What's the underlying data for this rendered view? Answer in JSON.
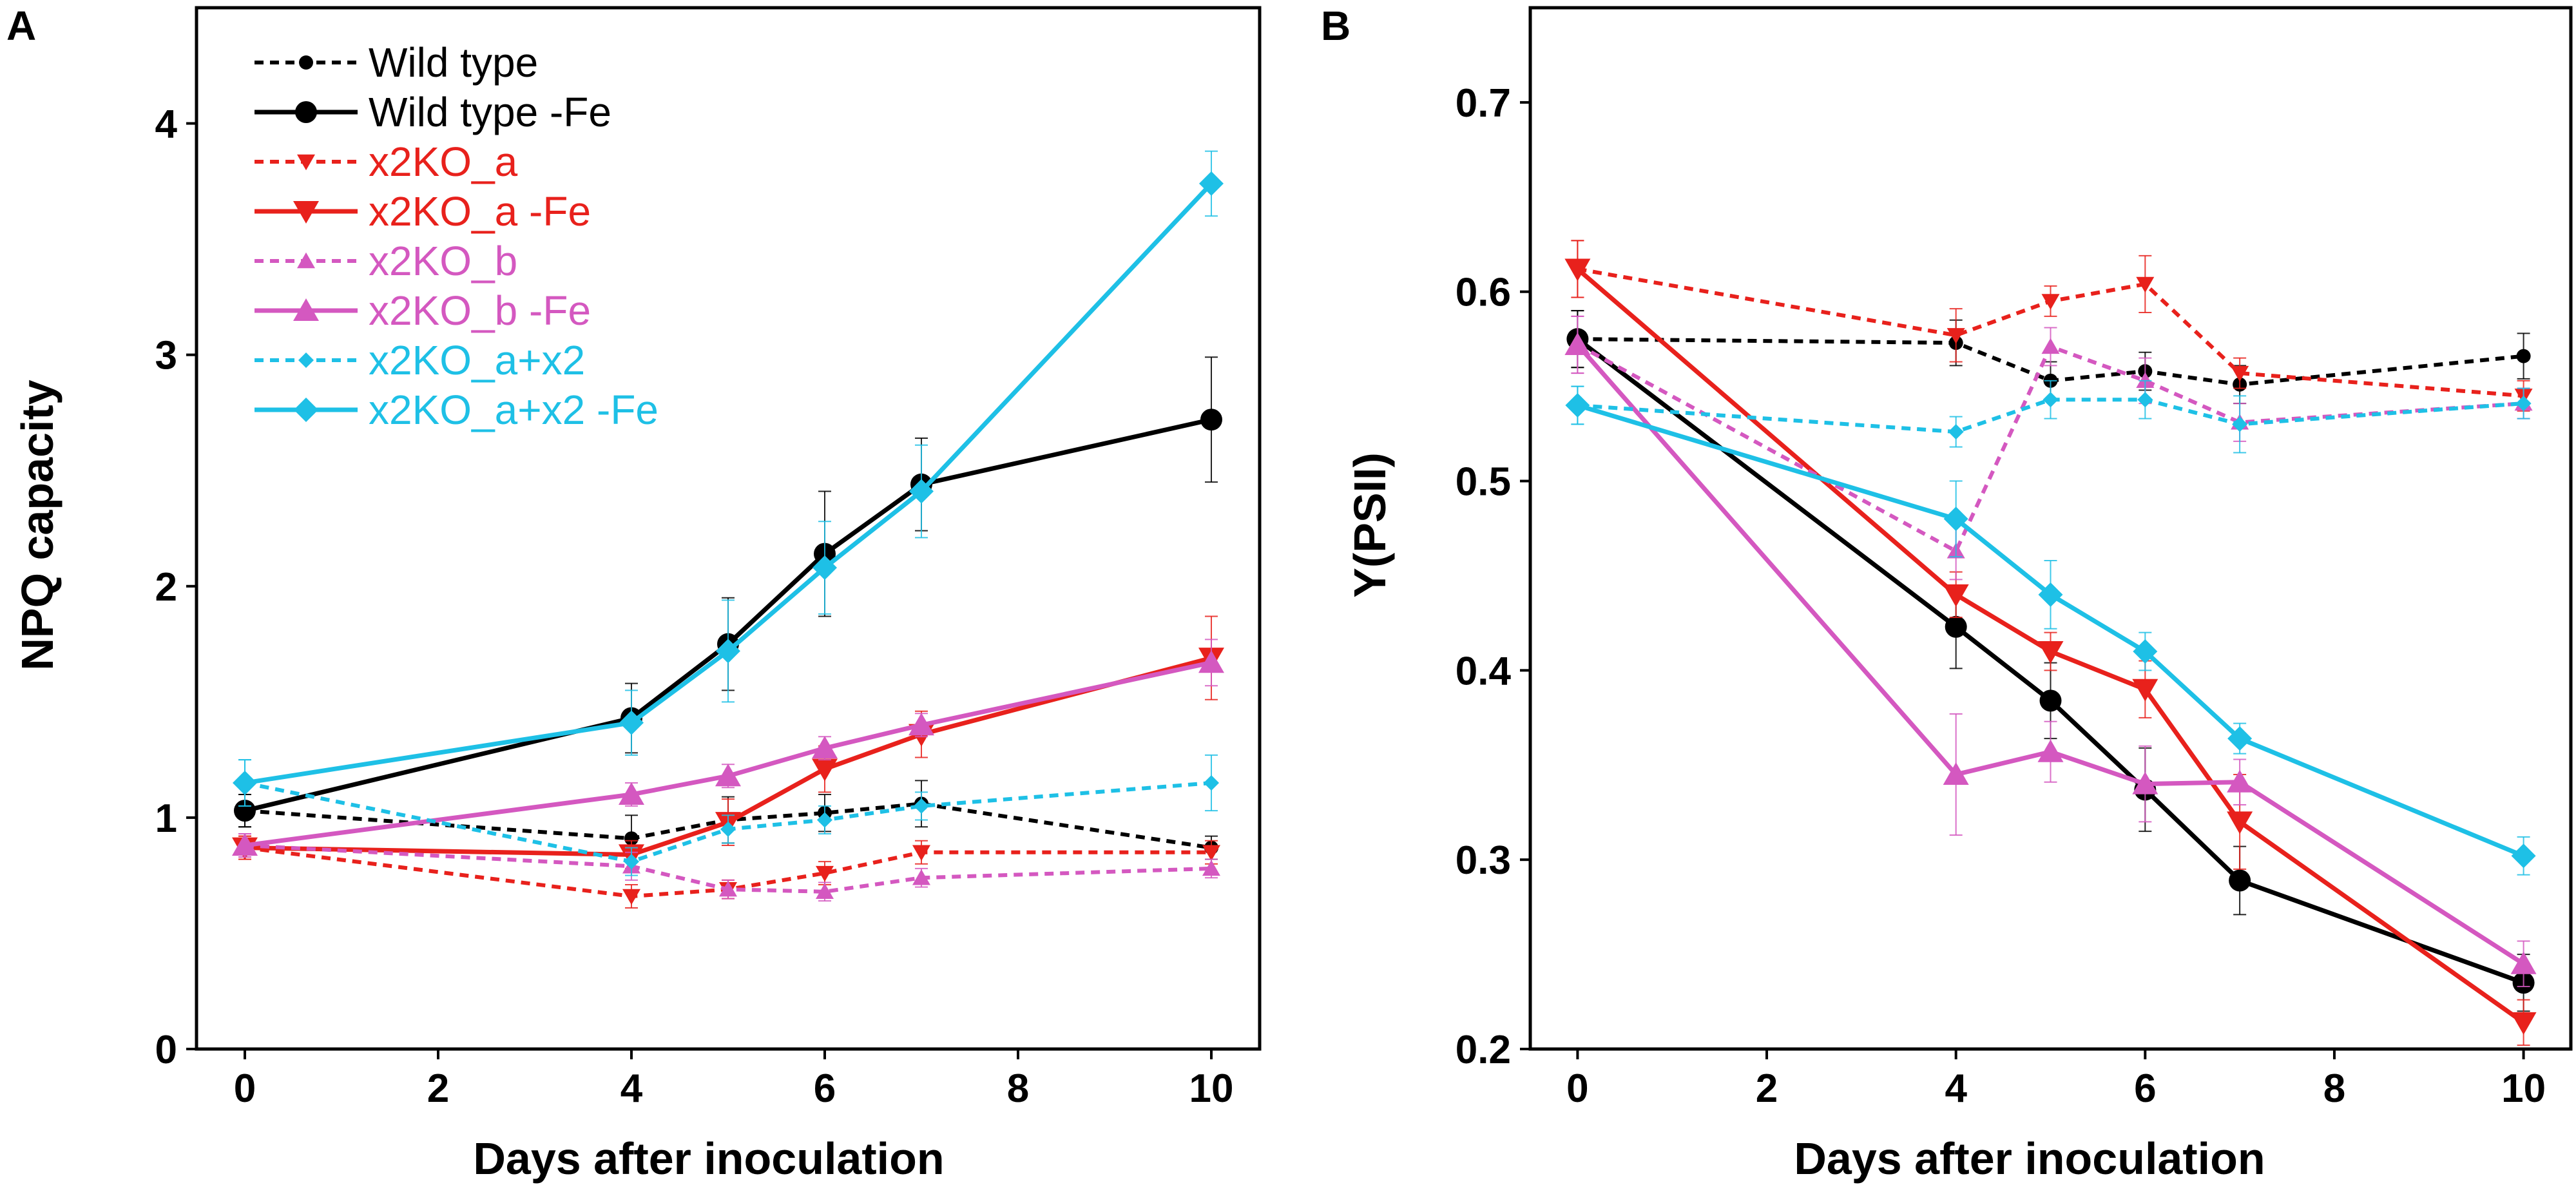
{
  "panels": [
    {
      "letter": "A",
      "xlabel": "Days after inoculation",
      "ylabel": "NPQ capacity"
    },
    {
      "letter": "B",
      "xlabel": "Days after inoculation",
      "ylabel": "Y(PSII)"
    }
  ],
  "chart_data": [
    {
      "type": "line",
      "title": "A",
      "xlabel": "Days after inoculation",
      "ylabel": "NPQ capacity",
      "xlim": [
        -0.5,
        10.5
      ],
      "ylim": [
        0,
        4.5
      ],
      "xticks": [
        0,
        2,
        4,
        6,
        8,
        10
      ],
      "yticks": [
        0,
        1,
        2,
        3,
        4
      ],
      "legend": "top-left",
      "x": [
        0,
        4,
        5,
        6,
        7,
        10
      ],
      "series": [
        {
          "name": "Wild type",
          "color": "#000000",
          "dashed": true,
          "marker": "circle-small",
          "values": [
            1.03,
            0.91,
            0.99,
            1.02,
            1.06,
            0.87
          ],
          "errors": [
            0.07,
            0.1,
            0.1,
            0.08,
            0.1,
            0.05
          ]
        },
        {
          "name": "Wild type -Fe",
          "color": "#000000",
          "dashed": false,
          "marker": "circle",
          "values": [
            1.03,
            1.43,
            1.75,
            2.14,
            2.44,
            2.72
          ],
          "errors": [
            0.07,
            0.15,
            0.2,
            0.27,
            0.2,
            0.27
          ]
        },
        {
          "name": "x2KO_a",
          "color": "#e8211c",
          "dashed": true,
          "marker": "tri-down-small",
          "values": [
            0.87,
            0.66,
            0.69,
            0.76,
            0.85,
            0.85
          ],
          "errors": [
            0.05,
            0.05,
            0.04,
            0.05,
            0.05,
            0.05
          ]
        },
        {
          "name": "x2KO_a -Fe",
          "color": "#e8211c",
          "dashed": false,
          "marker": "tri-down",
          "values": [
            0.87,
            0.84,
            0.98,
            1.21,
            1.36,
            1.69
          ],
          "errors": [
            0.05,
            0.06,
            0.1,
            0.1,
            0.1,
            0.18
          ]
        },
        {
          "name": "x2KO_b",
          "color": "#d458c0",
          "dashed": true,
          "marker": "tri-up-small",
          "values": [
            0.88,
            0.79,
            0.69,
            0.68,
            0.74,
            0.78
          ],
          "errors": [
            0.05,
            0.06,
            0.04,
            0.04,
            0.04,
            0.04
          ]
        },
        {
          "name": "x2KO_b -Fe",
          "color": "#d458c0",
          "dashed": false,
          "marker": "tri-up",
          "values": [
            0.88,
            1.1,
            1.18,
            1.3,
            1.4,
            1.67
          ],
          "errors": [
            0.05,
            0.05,
            0.05,
            0.05,
            0.05,
            0.1
          ]
        },
        {
          "name": "x2KO_a+x2",
          "color": "#1ec0e6",
          "dashed": true,
          "marker": "diamond-small",
          "values": [
            1.15,
            0.81,
            0.95,
            0.99,
            1.05,
            1.15
          ],
          "errors": [
            0.1,
            0.06,
            0.06,
            0.06,
            0.06,
            0.12
          ]
        },
        {
          "name": "x2KO_a+x2 -Fe",
          "color": "#1ec0e6",
          "dashed": false,
          "marker": "diamond",
          "values": [
            1.15,
            1.41,
            1.72,
            2.08,
            2.41,
            3.74
          ],
          "errors": [
            0.1,
            0.14,
            0.22,
            0.2,
            0.2,
            0.14
          ]
        }
      ]
    },
    {
      "type": "line",
      "title": "B",
      "xlabel": "Days after inoculation",
      "ylabel": "Y(PSII)",
      "xlim": [
        -0.5,
        10.5
      ],
      "ylim": [
        0.2,
        0.75
      ],
      "xticks": [
        0,
        2,
        4,
        6,
        8,
        10
      ],
      "yticks": [
        0.2,
        0.3,
        0.4,
        0.5,
        0.6,
        0.7
      ],
      "legend": "none",
      "x": [
        0,
        4,
        5,
        6,
        7,
        10
      ],
      "series": [
        {
          "name": "Wild type",
          "color": "#000000",
          "dashed": true,
          "marker": "circle-small",
          "values": [
            0.575,
            0.573,
            0.553,
            0.558,
            0.551,
            0.566
          ],
          "errors": [
            0.015,
            0.012,
            0.01,
            0.01,
            0.01,
            0.012
          ]
        },
        {
          "name": "Wild type -Fe",
          "color": "#000000",
          "dashed": false,
          "marker": "circle",
          "values": [
            0.575,
            0.423,
            0.384,
            0.337,
            0.289,
            0.235
          ],
          "errors": [
            0.015,
            0.022,
            0.02,
            0.022,
            0.018,
            0.015
          ]
        },
        {
          "name": "x2KO_a",
          "color": "#e8211c",
          "dashed": true,
          "marker": "tri-down-small",
          "values": [
            0.612,
            0.577,
            0.595,
            0.604,
            0.557,
            0.545
          ],
          "errors": [
            0.015,
            0.014,
            0.008,
            0.015,
            0.008,
            0.008
          ]
        },
        {
          "name": "x2KO_a -Fe",
          "color": "#e8211c",
          "dashed": false,
          "marker": "tri-down",
          "values": [
            0.612,
            0.44,
            0.41,
            0.39,
            0.32,
            0.214
          ],
          "errors": [
            0.015,
            0.012,
            0.01,
            0.015,
            0.025,
            0.012
          ]
        },
        {
          "name": "x2KO_b",
          "color": "#d458c0",
          "dashed": true,
          "marker": "tri-up-small",
          "values": [
            0.572,
            0.463,
            0.571,
            0.553,
            0.531,
            0.541
          ],
          "errors": [
            0.015,
            0.015,
            0.01,
            0.012,
            0.01,
            0.008
          ]
        },
        {
          "name": "x2KO_b -Fe",
          "color": "#d458c0",
          "dashed": false,
          "marker": "tri-up",
          "values": [
            0.572,
            0.345,
            0.357,
            0.34,
            0.341,
            0.245
          ],
          "errors": [
            0.015,
            0.032,
            0.016,
            0.02,
            0.012,
            0.012
          ]
        },
        {
          "name": "x2KO_a+x2",
          "color": "#1ec0e6",
          "dashed": true,
          "marker": "diamond-small",
          "values": [
            0.54,
            0.526,
            0.543,
            0.543,
            0.53,
            0.541
          ],
          "errors": [
            0.01,
            0.008,
            0.01,
            0.01,
            0.015,
            0.008
          ]
        },
        {
          "name": "x2KO_a+x2 -Fe",
          "color": "#1ec0e6",
          "dashed": false,
          "marker": "diamond",
          "values": [
            0.54,
            0.48,
            0.44,
            0.41,
            0.364,
            0.302
          ],
          "errors": [
            0.01,
            0.02,
            0.018,
            0.01,
            0.008,
            0.01
          ]
        }
      ]
    }
  ]
}
